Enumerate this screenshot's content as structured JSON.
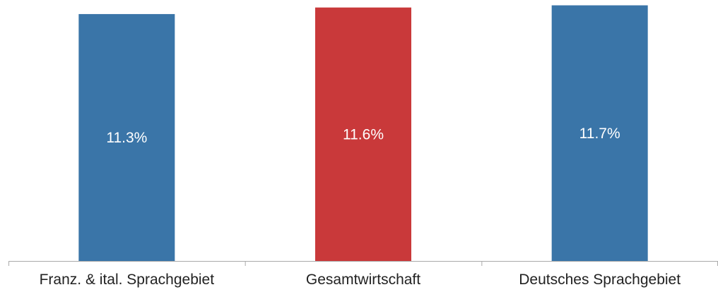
{
  "chart_data": {
    "type": "bar",
    "categories": [
      "Franz. & ital. Sprachgebiet",
      "Gesamtwirtschaft",
      "Deutsches Sprachgebiet"
    ],
    "values": [
      11.3,
      11.6,
      11.7
    ],
    "value_labels": [
      "11.3%",
      "11.6%",
      "11.7%"
    ],
    "colors": [
      "#3a75a8",
      "#c9393a",
      "#3a75a8"
    ],
    "ylim": [
      0,
      11.75
    ],
    "grid": false,
    "legend": "none",
    "axis_color": "#aaaaaa"
  }
}
